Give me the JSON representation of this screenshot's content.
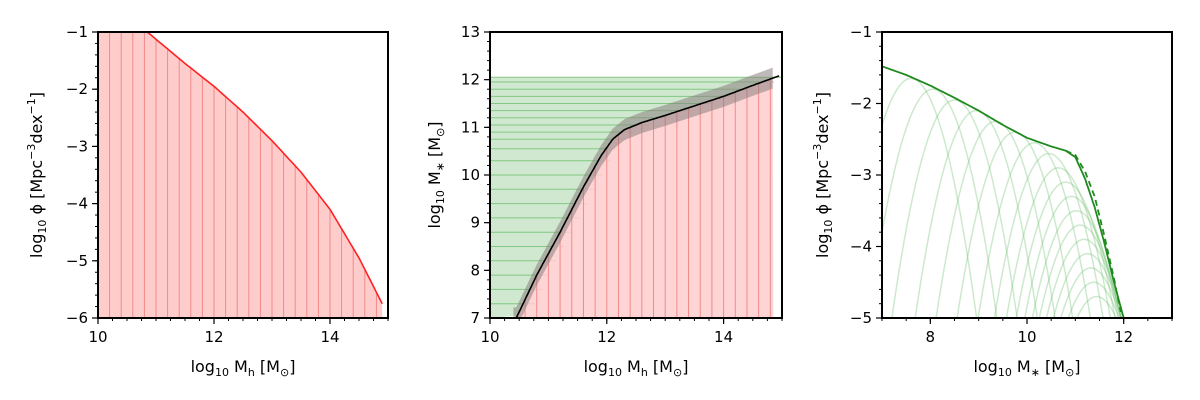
{
  "colors": {
    "fill_red": "#ffcccc",
    "line_red": "#ff2222",
    "stripe_red": "#f08a8a",
    "green_fill": "#cfe8cf",
    "green_line": "#6fbf6f",
    "green_dark": "#1f8a1f",
    "band_grey": "#8c7f7f",
    "black": "#000000"
  },
  "chart_data": [
    {
      "type": "area",
      "xlabel": "log10 Mh [M⊙]",
      "ylabel": "log10 ϕ [Mpc−3dex−1]",
      "xlim": [
        10,
        15
      ],
      "ylim": [
        -6,
        -1
      ],
      "xticks": [
        10,
        12,
        14
      ],
      "yticks": [
        -6,
        -5,
        -4,
        -3,
        -2,
        -1
      ],
      "series": [
        {
          "role": "halo mass function",
          "x": [
            10.0,
            10.5,
            10.85,
            11.5,
            12.0,
            12.5,
            13.0,
            13.5,
            14.0,
            14.5,
            14.9
          ],
          "y": [
            -0.4,
            -0.75,
            -1.0,
            -1.55,
            -1.95,
            -2.4,
            -2.9,
            -3.45,
            -4.1,
            -4.95,
            -5.75
          ]
        }
      ],
      "bins": {
        "start": 10.0,
        "end": 14.9,
        "step": 0.2
      }
    },
    {
      "type": "line",
      "xlabel": "log10 Mh [M⊙]",
      "ylabel": "log10 M∗ [M⊙]",
      "xlim": [
        10,
        15
      ],
      "ylim": [
        7,
        13
      ],
      "xticks": [
        10,
        12,
        14
      ],
      "yticks": [
        7,
        8,
        9,
        10,
        11,
        12,
        13
      ],
      "series": [
        {
          "role": "stellar-to-halo mass relation",
          "x": [
            10.45,
            10.8,
            11.2,
            11.6,
            11.9,
            12.1,
            12.3,
            12.6,
            13.0,
            13.5,
            14.0,
            14.5,
            14.95
          ],
          "y": [
            7.0,
            7.9,
            8.8,
            9.75,
            10.4,
            10.75,
            10.95,
            11.1,
            11.25,
            11.45,
            11.65,
            11.88,
            12.08
          ]
        }
      ],
      "band_halfwidth": 0.22,
      "green_levels_y": [
        7.3,
        7.6,
        7.9,
        8.2,
        8.5,
        8.8,
        9.1,
        9.4,
        9.7,
        10.0,
        10.3,
        10.55,
        10.75,
        10.9,
        11.05,
        11.2,
        11.35,
        11.5,
        11.65,
        11.8,
        11.95,
        12.05
      ]
    },
    {
      "type": "line",
      "xlabel": "log10 M∗ [M⊙]",
      "ylabel": "log10 ϕ [Mpc−3dex−1]",
      "xlim": [
        7,
        13
      ],
      "ylim": [
        -5,
        -1
      ],
      "xticks": [
        8,
        10,
        12
      ],
      "yticks": [
        -5,
        -4,
        -3,
        -2,
        -1
      ],
      "series": [
        {
          "role": "stellar mass function (solid)",
          "x": [
            7.0,
            7.5,
            8.0,
            8.5,
            9.0,
            9.5,
            10.0,
            10.5,
            10.8,
            11.0,
            11.2,
            11.4,
            11.6,
            11.8,
            12.0
          ],
          "y": [
            -1.48,
            -1.6,
            -1.75,
            -1.92,
            -2.1,
            -2.3,
            -2.48,
            -2.6,
            -2.66,
            -2.75,
            -3.05,
            -3.45,
            -3.95,
            -4.5,
            -5.0
          ]
        },
        {
          "role": "stellar mass function (dashed)",
          "x": [
            10.8,
            11.0,
            11.2,
            11.4,
            11.6,
            11.8,
            11.95
          ],
          "y": [
            -2.66,
            -2.72,
            -2.95,
            -3.3,
            -3.85,
            -4.45,
            -4.95
          ]
        }
      ],
      "peaks": [
        {
          "center": 7.6,
          "height": -1.65
        },
        {
          "center": 8.05,
          "height": -1.8
        },
        {
          "center": 8.5,
          "height": -1.95
        },
        {
          "center": 8.95,
          "height": -2.1
        },
        {
          "center": 9.35,
          "height": -2.25
        },
        {
          "center": 9.75,
          "height": -2.4
        },
        {
          "center": 10.15,
          "height": -2.55
        },
        {
          "center": 10.45,
          "height": -2.7
        },
        {
          "center": 10.65,
          "height": -2.9
        },
        {
          "center": 10.8,
          "height": -3.1
        },
        {
          "center": 10.92,
          "height": -3.3
        },
        {
          "center": 11.02,
          "height": -3.5
        },
        {
          "center": 11.1,
          "height": -3.7
        },
        {
          "center": 11.18,
          "height": -3.9
        },
        {
          "center": 11.25,
          "height": -4.1
        },
        {
          "center": 11.32,
          "height": -4.3
        },
        {
          "center": 11.38,
          "height": -4.5
        },
        {
          "center": 11.44,
          "height": -4.7
        }
      ]
    }
  ]
}
